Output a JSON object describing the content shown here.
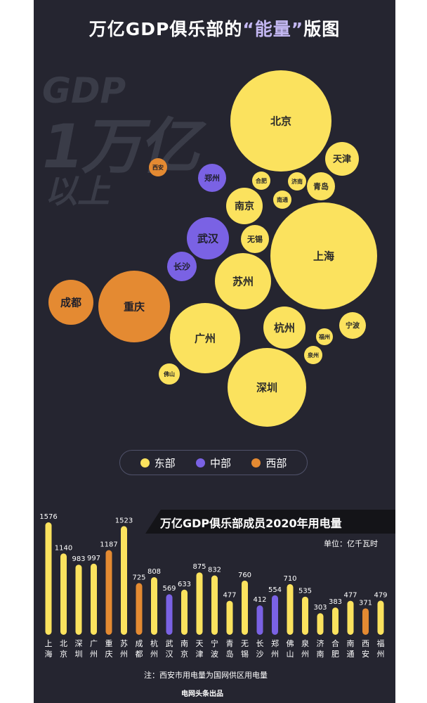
{
  "title": {
    "part1": "万亿GDP俱乐部的",
    "highlight": "“能量”",
    "part2": "版图"
  },
  "watermark": {
    "line1": "GDP",
    "line2": "1万亿",
    "line3": "以上"
  },
  "colors": {
    "east": "#fbe25e",
    "central": "#7a62e4",
    "west": "#e48a32",
    "background": "#252530"
  },
  "footer": "电网头条出品",
  "chart_data": [
    {
      "type": "bubble",
      "series": [
        {
          "name": "东部",
          "color": "#fbe25e",
          "points": [
            {
              "label": "北京"
            },
            {
              "label": "天津"
            },
            {
              "label": "合肥"
            },
            {
              "label": "济南"
            },
            {
              "label": "青岛"
            },
            {
              "label": "南通"
            },
            {
              "label": "南京"
            },
            {
              "label": "无锡"
            },
            {
              "label": "上海"
            },
            {
              "label": "苏州"
            },
            {
              "label": "杭州"
            },
            {
              "label": "宁波"
            },
            {
              "label": "福州"
            },
            {
              "label": "泉州"
            },
            {
              "label": "广州"
            },
            {
              "label": "佛山"
            },
            {
              "label": "深圳"
            }
          ]
        },
        {
          "name": "中部",
          "color": "#7a62e4",
          "points": [
            {
              "label": "郑州"
            },
            {
              "label": "武汉"
            },
            {
              "label": "长沙"
            }
          ]
        },
        {
          "name": "西部",
          "color": "#e48a32",
          "points": [
            {
              "label": "西安"
            },
            {
              "label": "成都"
            },
            {
              "label": "重庆"
            }
          ]
        }
      ]
    },
    {
      "type": "bar",
      "title": "万亿GDP俱乐部成员2020年用电量",
      "unit": "单位：亿千瓦时",
      "note": "注：西安市用电量为国网供区用电量",
      "categories": [
        "上海",
        "北京",
        "深圳",
        "广州",
        "重庆",
        "苏州",
        "成都",
        "杭州",
        "武汉",
        "南京",
        "天津",
        "宁波",
        "青岛",
        "无锡",
        "长沙",
        "郑州",
        "佛山",
        "泉州",
        "济南",
        "合肥",
        "南通",
        "西安",
        "福州"
      ],
      "values": [
        1576,
        1140,
        983,
        997,
        1187,
        1523,
        725,
        808,
        569,
        633,
        875,
        832,
        477,
        760,
        412,
        554,
        710,
        535,
        303,
        383,
        477,
        371,
        479
      ],
      "regions": [
        "east",
        "east",
        "east",
        "east",
        "west",
        "east",
        "west",
        "east",
        "central",
        "east",
        "east",
        "east",
        "east",
        "east",
        "central",
        "central",
        "east",
        "east",
        "east",
        "east",
        "east",
        "west",
        "east"
      ]
    }
  ]
}
